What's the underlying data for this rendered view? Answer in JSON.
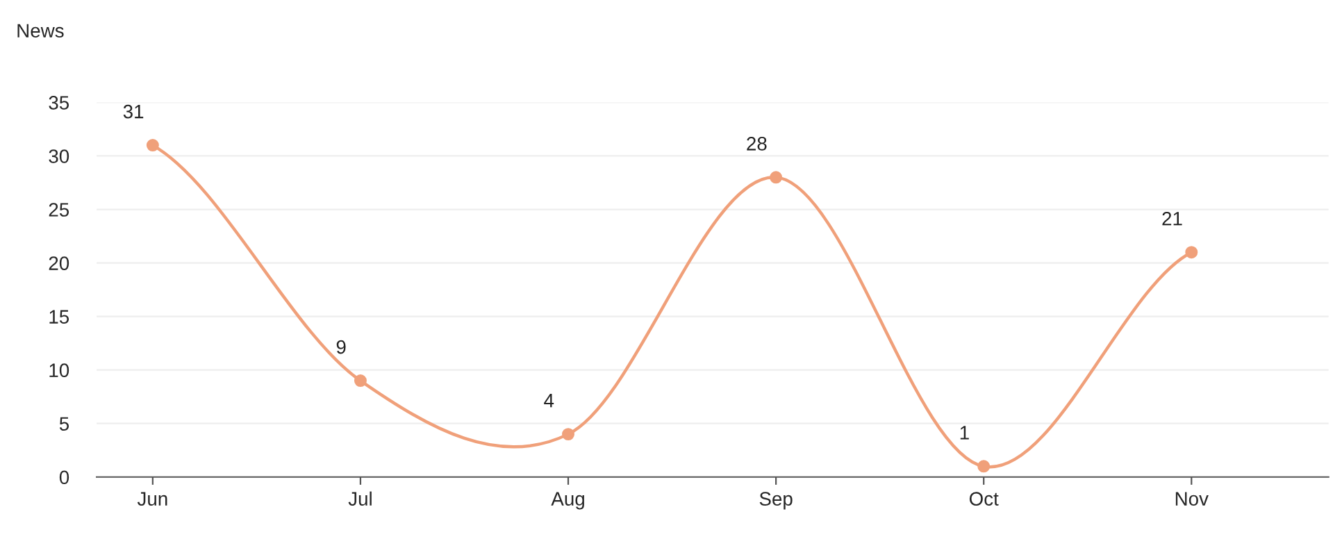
{
  "chart_data": {
    "type": "line",
    "ylabel": "News",
    "categories": [
      "Jun",
      "Jul",
      "Aug",
      "Sep",
      "Oct",
      "Nov"
    ],
    "series": [
      {
        "color": "#f0a07a",
        "values": [
          31,
          9,
          4,
          28,
          1,
          21
        ]
      }
    ],
    "ylim": [
      0,
      35
    ],
    "yticks": [
      0,
      5,
      10,
      15,
      20,
      25,
      30,
      35
    ],
    "grid": "y",
    "marker": "circle",
    "line_style": "solid",
    "data_labels": true,
    "legend": false
  }
}
